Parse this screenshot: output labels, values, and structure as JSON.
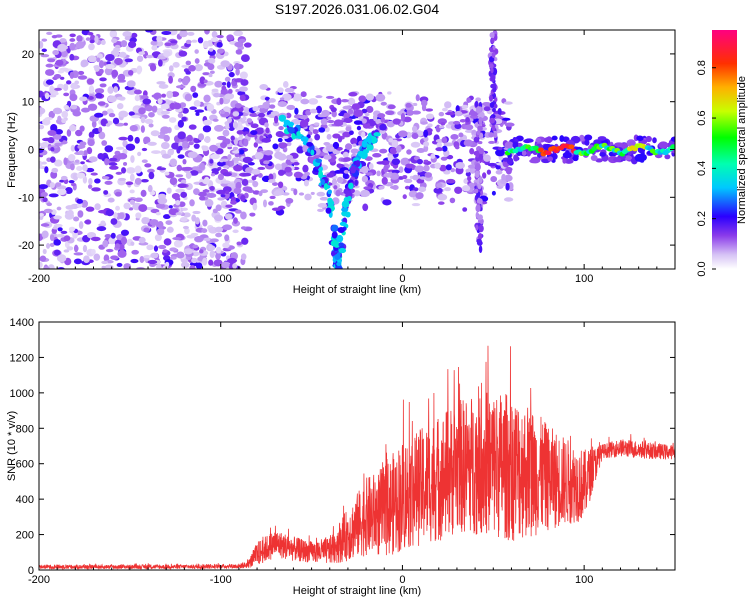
{
  "figure_title": "S197.2026.031.06.02.G04",
  "chart_data": [
    {
      "type": "heatmap",
      "panel": "spectrogram",
      "title": "",
      "xlabel": "Height of straight line (km)",
      "ylabel": "Frequency (Hz)",
      "xlim": [
        -200,
        150
      ],
      "ylim": [
        -25,
        25
      ],
      "xticks": [
        -200,
        -100,
        0,
        100
      ],
      "yticks": [
        -20,
        -10,
        0,
        10,
        20
      ],
      "colorbar": {
        "label": "Normalized spectral amplitude",
        "range": [
          0,
          0.95
        ],
        "ticks": [
          0.0,
          0.2,
          0.4,
          0.6,
          0.8
        ],
        "colors": [
          "#ffffff",
          "#c9a8f2",
          "#7a25e8",
          "#2a00ff",
          "#00ffff",
          "#00ff00",
          "#ffff00",
          "#ff8000",
          "#ff0000",
          "#ff0080"
        ]
      },
      "features": [
        {
          "name": "diffuse scatter",
          "x_range": [
            -200,
            -95
          ],
          "freq_range": [
            -25,
            25
          ],
          "amplitude": 0.08
        },
        {
          "name": "v-notch left",
          "points": [
            [
              -65,
              6
            ],
            [
              -50,
              0
            ],
            [
              -42,
              -8
            ],
            [
              -37,
              -20
            ],
            [
              -35,
              -25
            ]
          ],
          "amplitude": 0.3
        },
        {
          "name": "v-notch right",
          "points": [
            [
              -35,
              -25
            ],
            [
              -30,
              -10
            ],
            [
              -25,
              -2
            ],
            [
              -15,
              3
            ]
          ],
          "amplitude": 0.25
        },
        {
          "name": "spike",
          "x": 42,
          "freq_range": [
            -22,
            10
          ],
          "amplitude": 0.15
        },
        {
          "name": "spike",
          "x": 50,
          "freq_range": [
            0,
            25
          ],
          "amplitude": 0.15
        },
        {
          "name": "carrier line",
          "x_range": [
            58,
            150
          ],
          "freq": 0,
          "amplitude": 0.85
        }
      ]
    },
    {
      "type": "line",
      "panel": "snr",
      "title": "",
      "xlabel": "Height of straight line (km)",
      "ylabel": "SNR (10 * v/v)",
      "xlim": [
        -200,
        150
      ],
      "ylim": [
        0,
        1400
      ],
      "xticks": [
        -200,
        -100,
        0,
        100
      ],
      "yticks": [
        0,
        200,
        400,
        600,
        800,
        1000,
        1200,
        1400
      ],
      "color": "#ee3333",
      "series": [
        {
          "name": "SNR",
          "x": [
            -200,
            -175,
            -150,
            -125,
            -100,
            -90,
            -85,
            -80,
            -70,
            -60,
            -50,
            -40,
            -30,
            -20,
            -10,
            0,
            10,
            20,
            30,
            40,
            50,
            60,
            70,
            80,
            90,
            100,
            110,
            120,
            130,
            140,
            150
          ],
          "mean": [
            18,
            18,
            18,
            18,
            20,
            22,
            30,
            90,
            150,
            120,
            100,
            110,
            200,
            300,
            330,
            420,
            470,
            520,
            580,
            600,
            600,
            580,
            560,
            520,
            500,
            480,
            670,
            690,
            680,
            670,
            665
          ],
          "amp": [
            12,
            12,
            12,
            12,
            12,
            14,
            20,
            70,
            80,
            70,
            60,
            80,
            150,
            220,
            260,
            320,
            330,
            360,
            380,
            400,
            420,
            420,
            380,
            300,
            250,
            200,
            40,
            50,
            50,
            45,
            40
          ]
        }
      ]
    }
  ]
}
